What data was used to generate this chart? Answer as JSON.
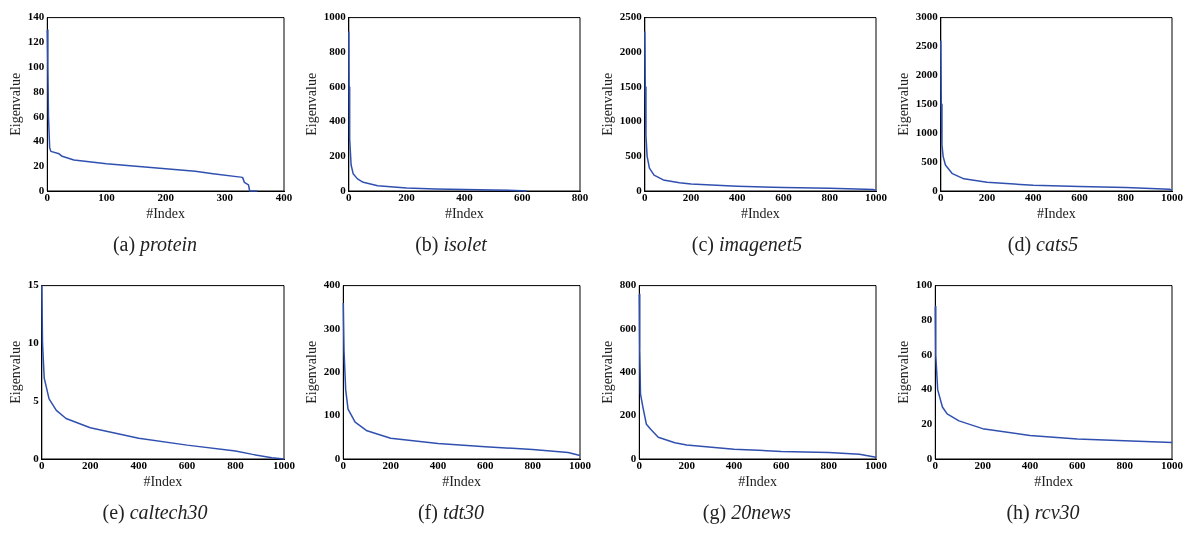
{
  "chart_data": [
    {
      "type": "line",
      "title": "(a) protein",
      "xlabel": "#Index",
      "ylabel": "Eigenvalue",
      "xlim": [
        0,
        400
      ],
      "xticks": [
        0,
        100,
        200,
        300,
        400
      ],
      "ylim": [
        0,
        140
      ],
      "yticks": [
        0,
        20,
        40,
        60,
        80,
        100,
        120,
        140
      ],
      "grid": false,
      "legend": false,
      "marker": "none",
      "series": [
        {
          "color": "#3050b0",
          "x": [
            0,
            1,
            2,
            4,
            6,
            20,
            25,
            45,
            100,
            200,
            250,
            280,
            330,
            333,
            340,
            342,
            355
          ],
          "values": [
            130,
            100,
            60,
            35,
            32,
            30,
            28,
            25,
            22,
            18,
            16,
            14,
            11,
            7,
            5,
            0,
            0
          ]
        }
      ]
    },
    {
      "type": "line",
      "title": "(b) isolet",
      "xlabel": "#Index",
      "ylabel": "Eigenvalue",
      "xlim": [
        0,
        800
      ],
      "xticks": [
        0,
        200,
        400,
        600,
        800
      ],
      "ylim": [
        0,
        1000
      ],
      "yticks": [
        0,
        200,
        400,
        600,
        800,
        1000
      ],
      "grid": false,
      "legend": false,
      "marker": "none",
      "series": [
        {
          "color": "#3050b0",
          "x": [
            0,
            1,
            3,
            8,
            15,
            30,
            50,
            100,
            200,
            300,
            400,
            500,
            600,
            615
          ],
          "values": [
            920,
            600,
            300,
            150,
            100,
            70,
            50,
            30,
            17,
            12,
            9,
            6,
            2,
            0
          ]
        }
      ]
    },
    {
      "type": "line",
      "title": "(c) imagenet5",
      "xlabel": "#Index",
      "ylabel": "Eigenvalue",
      "xlim": [
        0,
        1000
      ],
      "xticks": [
        0,
        200,
        400,
        600,
        800,
        1000
      ],
      "ylim": [
        0,
        2500
      ],
      "yticks": [
        0,
        500,
        1000,
        1500,
        2000,
        2500
      ],
      "grid": false,
      "legend": false,
      "marker": "none",
      "series": [
        {
          "color": "#3050b0",
          "x": [
            0,
            2,
            5,
            10,
            20,
            40,
            80,
            150,
            200,
            400,
            600,
            800,
            990,
            1000
          ],
          "values": [
            2300,
            1500,
            800,
            500,
            330,
            230,
            160,
            120,
            100,
            70,
            50,
            40,
            20,
            10
          ]
        }
      ]
    },
    {
      "type": "line",
      "title": "(d) cats5",
      "xlabel": "#Index",
      "ylabel": "Eigenvalue",
      "xlim": [
        0,
        1000
      ],
      "xticks": [
        0,
        200,
        400,
        600,
        800,
        1000
      ],
      "ylim": [
        0,
        3000
      ],
      "yticks": [
        0,
        500,
        1000,
        1500,
        2000,
        2500,
        3000
      ],
      "grid": false,
      "legend": false,
      "marker": "none",
      "series": [
        {
          "color": "#3050b0",
          "x": [
            0,
            2,
            5,
            10,
            20,
            50,
            100,
            200,
            400,
            600,
            800,
            990,
            1000
          ],
          "values": [
            2600,
            1500,
            800,
            600,
            450,
            300,
            210,
            150,
            100,
            80,
            60,
            30,
            10
          ]
        }
      ]
    },
    {
      "type": "line",
      "title": "(e) caltech30",
      "xlabel": "#Index",
      "ylabel": "Eigenvalue",
      "xlim": [
        0,
        1000
      ],
      "xticks": [
        0,
        200,
        400,
        600,
        800,
        1000
      ],
      "ylim": [
        0,
        15
      ],
      "yticks": [
        0,
        5,
        10,
        15
      ],
      "grid": false,
      "legend": false,
      "marker": "none",
      "series": [
        {
          "color": "#3050b0",
          "x": [
            0,
            3,
            10,
            30,
            60,
            100,
            200,
            400,
            600,
            800,
            870,
            950,
            1000
          ],
          "values": [
            15,
            10,
            7,
            5.2,
            4.2,
            3.5,
            2.7,
            1.8,
            1.2,
            0.7,
            0.4,
            0.1,
            0
          ]
        }
      ]
    },
    {
      "type": "line",
      "title": "(f) tdt30",
      "xlabel": "#Index",
      "ylabel": "Eigenvalue",
      "xlim": [
        0,
        1000
      ],
      "xticks": [
        0,
        200,
        400,
        600,
        800,
        1000
      ],
      "ylim": [
        0,
        400
      ],
      "yticks": [
        0,
        100,
        200,
        300,
        400
      ],
      "grid": false,
      "legend": false,
      "marker": "none",
      "series": [
        {
          "color": "#3050b0",
          "x": [
            0,
            3,
            10,
            20,
            50,
            100,
            200,
            400,
            600,
            800,
            950,
            1000
          ],
          "values": [
            360,
            250,
            160,
            115,
            85,
            65,
            48,
            36,
            28,
            22,
            15,
            8
          ]
        }
      ]
    },
    {
      "type": "line",
      "title": "(g) 20news",
      "xlabel": "#Index",
      "ylabel": "Eigenvalue",
      "xlim": [
        0,
        1000
      ],
      "xticks": [
        0,
        200,
        400,
        600,
        800,
        1000
      ],
      "ylim": [
        0,
        800
      ],
      "yticks": [
        0,
        200,
        400,
        600,
        800
      ],
      "grid": false,
      "legend": false,
      "marker": "none",
      "series": [
        {
          "color": "#3050b0",
          "x": [
            0,
            2,
            5,
            15,
            30,
            50,
            80,
            150,
            200,
            400,
            600,
            800,
            930,
            1000
          ],
          "values": [
            760,
            500,
            300,
            240,
            160,
            135,
            100,
            75,
            65,
            45,
            35,
            30,
            22,
            8
          ]
        }
      ]
    },
    {
      "type": "line",
      "title": "(h) rcv30",
      "xlabel": "#Index",
      "ylabel": "Eigenvalue",
      "xlim": [
        0,
        1000
      ],
      "xticks": [
        0,
        200,
        400,
        600,
        800,
        1000
      ],
      "ylim": [
        0,
        100
      ],
      "yticks": [
        0,
        20,
        40,
        60,
        80,
        100
      ],
      "grid": false,
      "legend": false,
      "marker": "none",
      "series": [
        {
          "color": "#3050b0",
          "x": [
            0,
            2,
            10,
            30,
            50,
            100,
            200,
            400,
            600,
            800,
            1000
          ],
          "values": [
            88,
            60,
            40,
            30,
            26,
            22,
            17.5,
            13.5,
            11.5,
            10.5,
            9.5
          ]
        }
      ]
    }
  ]
}
